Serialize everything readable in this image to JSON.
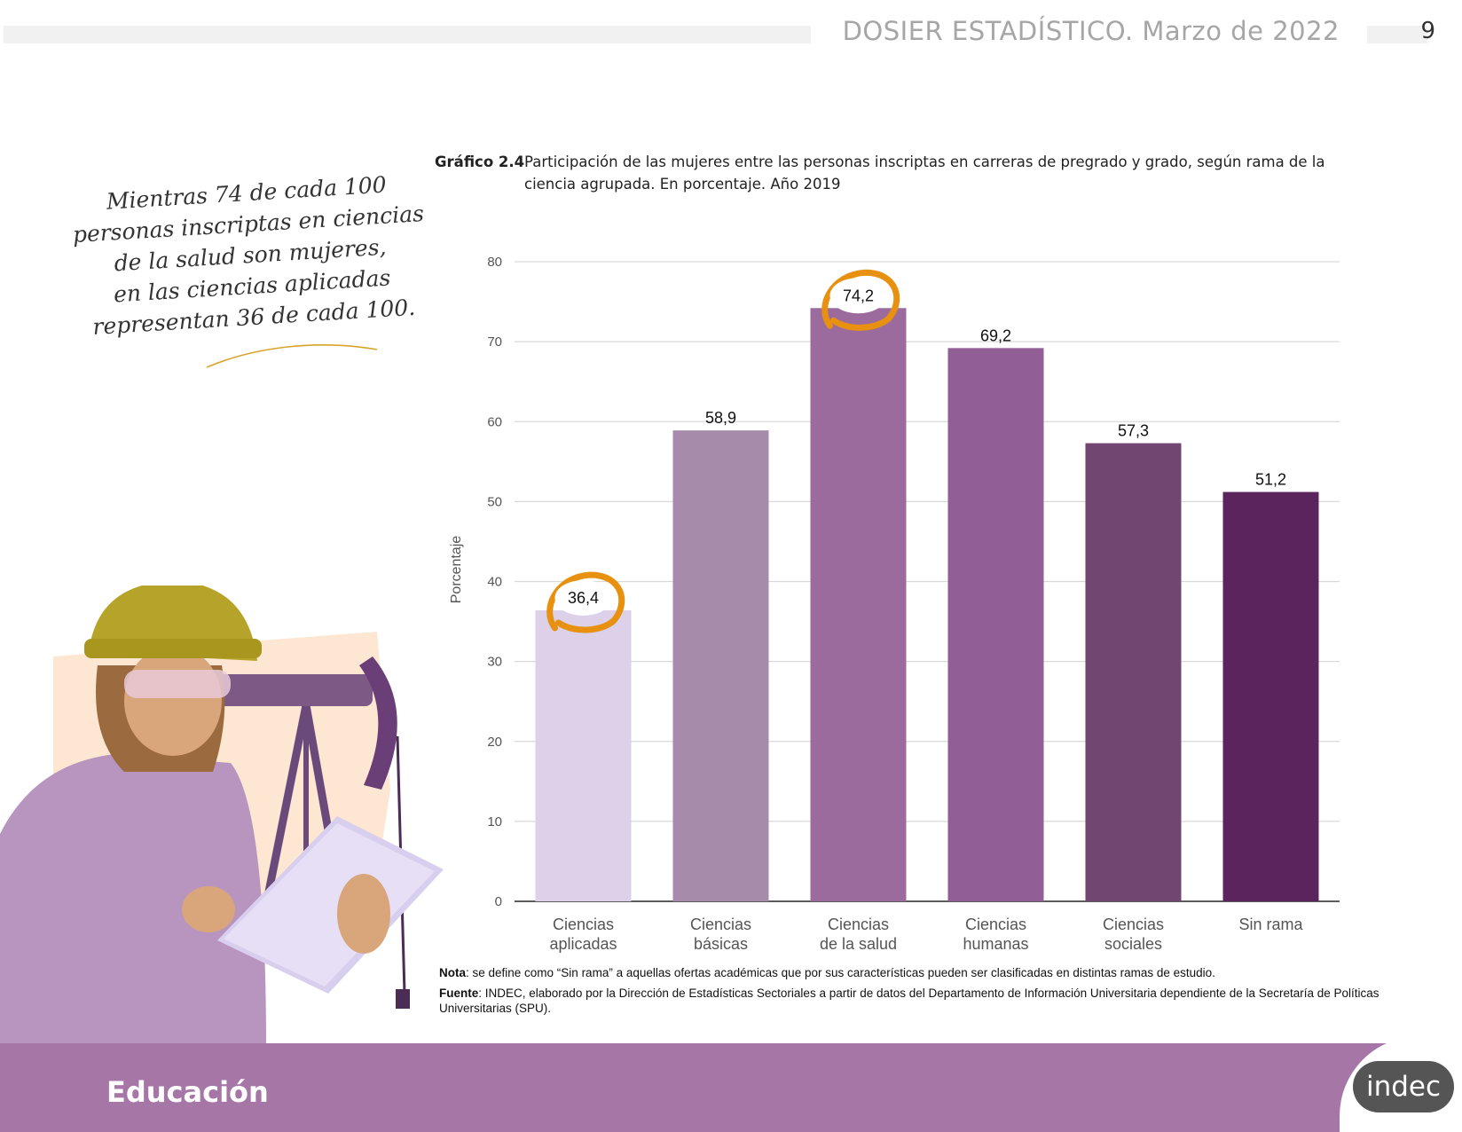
{
  "header": {
    "title": "DOSIER ESTADÍSTICO. Marzo de 2022",
    "page_number": "9"
  },
  "quote": {
    "lines": [
      "Mientras 74 de cada 100",
      "personas inscriptas en ciencias",
      "de la salud son mujeres,",
      "en las ciencias aplicadas",
      "representan 36 de cada 100."
    ]
  },
  "chart_data": {
    "type": "bar",
    "title_number": "Gráfico 2.4",
    "title": "Participación de las mujeres entre las personas inscriptas en carreras de pregrado y grado, según rama de la ciencia agrupada. En porcentaje. Año 2019",
    "ylabel": "Porcentaje",
    "xlabel": "",
    "ylim": [
      0,
      80
    ],
    "yticks": [
      0,
      10,
      20,
      30,
      40,
      50,
      60,
      70,
      80
    ],
    "grid": true,
    "categories": [
      [
        "Ciencias",
        "aplicadas"
      ],
      [
        "Ciencias",
        "básicas"
      ],
      [
        "Ciencias",
        "de la salud"
      ],
      [
        "Ciencias",
        "humanas"
      ],
      [
        "Ciencias",
        "sociales"
      ],
      [
        "Sin rama"
      ]
    ],
    "values": [
      36.4,
      58.9,
      74.2,
      69.2,
      57.3,
      51.2
    ],
    "value_labels": [
      "36,4",
      "58,9",
      "74,2",
      "69,2",
      "57,3",
      "51,2"
    ],
    "colors": [
      "#dcd1e8",
      "#a68bab",
      "#9b6b9d",
      "#925e96",
      "#714670",
      "#5c245d"
    ],
    "highlighted": [
      0,
      2
    ],
    "highlight_color": "#e8900f"
  },
  "notes": {
    "nota_label": "Nota",
    "nota_text": ": se define como “Sin rama” a aquellas ofertas académicas que por sus características pueden ser clasificadas en distintas ramas de estudio.",
    "fuente_label": "Fuente",
    "fuente_text": ": INDEC, elaborado por la Dirección de Estadísticas Sectoriales a partir de datos del Departamento de Información Universitaria dependiente de la Secretaría de Políticas Universitarias (SPU)."
  },
  "footer": {
    "section_title": "Educación",
    "logo_text": "indec"
  }
}
